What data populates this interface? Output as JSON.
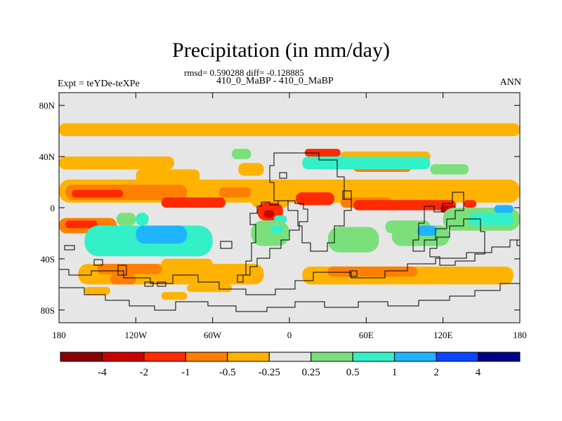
{
  "chart_data": {
    "type": "heatmap",
    "title": "Precipitation (in mm/day)",
    "stats_text": "rmsd= 0.590288 diff= -0.128885",
    "cases_text": "410_0_MaBP - 410_0_MaBP",
    "left_label": "Expt = teYDe-teXPe",
    "right_label": "ANN",
    "x_ticks": [
      {
        "value": -180,
        "label": "180"
      },
      {
        "value": -120,
        "label": "120W"
      },
      {
        "value": -60,
        "label": "60W"
      },
      {
        "value": 0,
        "label": "0"
      },
      {
        "value": 60,
        "label": "60E"
      },
      {
        "value": 120,
        "label": "120E"
      },
      {
        "value": 180,
        "label": "180"
      }
    ],
    "y_ticks": [
      {
        "value": 80,
        "label": "80N"
      },
      {
        "value": 40,
        "label": "40N"
      },
      {
        "value": 0,
        "label": "0"
      },
      {
        "value": -40,
        "label": "40S"
      },
      {
        "value": -80,
        "label": "80S"
      }
    ],
    "xlim": [
      -180,
      180
    ],
    "ylim": [
      -90,
      90
    ],
    "levels": [
      "-4",
      "-2",
      "-1",
      "-0.5",
      "-0.25",
      "0.25",
      "0.5",
      "1",
      "2",
      "4"
    ],
    "colors": [
      "#8b0000",
      "#cc0000",
      "#ff2a00",
      "#ff7f00",
      "#ffb300",
      "#e6e6e6",
      "#7be07b",
      "#33f0c8",
      "#1eb4ff",
      "#0a46ff",
      "#00008b"
    ],
    "background_color": "#e6e6e6",
    "regions": [
      {
        "cls": 4,
        "lon": [
          -180,
          180
        ],
        "lat": [
          56,
          66
        ]
      },
      {
        "cls": 4,
        "lon": [
          -180,
          -90
        ],
        "lat": [
          30,
          40
        ]
      },
      {
        "cls": 4,
        "lon": [
          -120,
          -70
        ],
        "lat": [
          20,
          30
        ]
      },
      {
        "cls": 4,
        "lon": [
          -40,
          -20
        ],
        "lat": [
          25,
          35
        ]
      },
      {
        "cls": 4,
        "lon": [
          40,
          110
        ],
        "lat": [
          36,
          44
        ]
      },
      {
        "cls": 2,
        "lon": [
          12,
          40
        ],
        "lat": [
          40,
          46
        ]
      },
      {
        "cls": 3,
        "lon": [
          50,
          95
        ],
        "lat": [
          28,
          35
        ]
      },
      {
        "cls": 6,
        "lon": [
          -45,
          -30
        ],
        "lat": [
          38,
          46
        ]
      },
      {
        "cls": 7,
        "lon": [
          10,
          110
        ],
        "lat": [
          30,
          40
        ]
      },
      {
        "cls": 6,
        "lon": [
          110,
          140
        ],
        "lat": [
          26,
          34
        ]
      },
      {
        "cls": 6,
        "lon": [
          75,
          110
        ],
        "lat": [
          -20,
          -10
        ]
      },
      {
        "cls": 4,
        "lon": [
          -180,
          180
        ],
        "lat": [
          4,
          22
        ]
      },
      {
        "cls": 3,
        "lon": [
          -175,
          -80
        ],
        "lat": [
          6,
          18
        ]
      },
      {
        "cls": 2,
        "lon": [
          -170,
          -130
        ],
        "lat": [
          8,
          14
        ]
      },
      {
        "cls": 2,
        "lon": [
          -100,
          -50
        ],
        "lat": [
          0,
          8
        ]
      },
      {
        "cls": 3,
        "lon": [
          -55,
          -30
        ],
        "lat": [
          8,
          16
        ]
      },
      {
        "cls": 4,
        "lon": [
          -30,
          0
        ],
        "lat": [
          0,
          12
        ]
      },
      {
        "cls": 2,
        "lon": [
          -25,
          -5
        ],
        "lat": [
          -10,
          4
        ]
      },
      {
        "cls": 1,
        "lon": [
          -20,
          -12
        ],
        "lat": [
          -8,
          -2
        ]
      },
      {
        "cls": 7,
        "lon": [
          -12,
          -2
        ],
        "lat": [
          -12,
          -6
        ]
      },
      {
        "cls": 2,
        "lon": [
          5,
          35
        ],
        "lat": [
          2,
          12
        ]
      },
      {
        "cls": 3,
        "lon": [
          40,
          80
        ],
        "lat": [
          0,
          8
        ]
      },
      {
        "cls": 2,
        "lon": [
          50,
          130
        ],
        "lat": [
          -2,
          6
        ]
      },
      {
        "cls": 1,
        "lon": [
          118,
          130
        ],
        "lat": [
          -4,
          2
        ]
      },
      {
        "cls": 2,
        "lon": [
          136,
          146
        ],
        "lat": [
          0,
          6
        ]
      },
      {
        "cls": 3,
        "lon": [
          -180,
          -135
        ],
        "lat": [
          -20,
          -8
        ]
      },
      {
        "cls": 2,
        "lon": [
          -175,
          -150
        ],
        "lat": [
          -16,
          -10
        ]
      },
      {
        "cls": 6,
        "lon": [
          -135,
          -120
        ],
        "lat": [
          -14,
          -4
        ]
      },
      {
        "cls": 7,
        "lon": [
          -120,
          -110
        ],
        "lat": [
          -14,
          -4
        ]
      },
      {
        "cls": 7,
        "lon": [
          -160,
          -60
        ],
        "lat": [
          -38,
          -14
        ]
      },
      {
        "cls": 8,
        "lon": [
          -120,
          -80
        ],
        "lat": [
          -28,
          -14
        ]
      },
      {
        "cls": 6,
        "lon": [
          -30,
          0
        ],
        "lat": [
          -30,
          -10
        ]
      },
      {
        "cls": 7,
        "lon": [
          -15,
          -5
        ],
        "lat": [
          -20,
          -14
        ]
      },
      {
        "cls": 6,
        "lon": [
          30,
          70
        ],
        "lat": [
          -35,
          -15
        ]
      },
      {
        "cls": 6,
        "lon": [
          80,
          125
        ],
        "lat": [
          -30,
          -14
        ]
      },
      {
        "cls": 8,
        "lon": [
          100,
          115
        ],
        "lat": [
          -22,
          -14
        ]
      },
      {
        "cls": 6,
        "lon": [
          120,
          180
        ],
        "lat": [
          -18,
          0
        ]
      },
      {
        "cls": 7,
        "lon": [
          140,
          175
        ],
        "lat": [
          -14,
          -4
        ]
      },
      {
        "cls": 8,
        "lon": [
          160,
          175
        ],
        "lat": [
          -4,
          2
        ]
      },
      {
        "cls": 4,
        "lon": [
          -165,
          -20
        ],
        "lat": [
          -60,
          -44
        ]
      },
      {
        "cls": 3,
        "lon": [
          -150,
          -100
        ],
        "lat": [
          -52,
          -44
        ]
      },
      {
        "cls": 3,
        "lon": [
          -140,
          -120
        ],
        "lat": [
          -60,
          -52
        ]
      },
      {
        "cls": 4,
        "lon": [
          10,
          175
        ],
        "lat": [
          -60,
          -46
        ]
      },
      {
        "cls": 3,
        "lon": [
          30,
          100
        ],
        "lat": [
          -54,
          -46
        ]
      },
      {
        "cls": 4,
        "lon": [
          -80,
          -45
        ],
        "lat": [
          -66,
          -60
        ]
      },
      {
        "cls": 4,
        "lon": [
          -100,
          -60
        ],
        "lat": [
          -48,
          -40
        ]
      },
      {
        "cls": 4,
        "lon": [
          -100,
          -80
        ],
        "lat": [
          -72,
          -66
        ]
      },
      {
        "cls": 4,
        "lon": [
          -160,
          -140
        ],
        "lat": [
          -68,
          -62
        ]
      }
    ]
  },
  "colorbar": {
    "labels": [
      "-4",
      "-2",
      "-1",
      "-0.5",
      "-0.25",
      "0.25",
      "0.5",
      "1",
      "2",
      "4"
    ]
  }
}
